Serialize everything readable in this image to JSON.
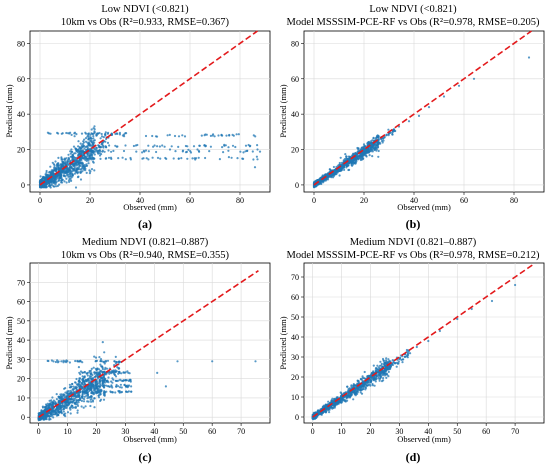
{
  "chart_data": [
    {
      "type": "scatter",
      "panel_label": "(a)",
      "title": [
        "Low NDVI (<0.821)",
        "10km vs Obs (R²=0.933, RMSE=0.367)"
      ],
      "xlabel": "Observed (mm)",
      "ylabel": "Predicted (mm)",
      "xlim": [
        -4,
        92
      ],
      "ylim": [
        -4,
        87
      ],
      "xticks": [
        0,
        20,
        40,
        60,
        80
      ],
      "yticks": [
        0,
        20,
        40,
        60,
        80
      ],
      "grid": true,
      "ref_line": {
        "name": "1:1",
        "x": [
          0,
          87
        ],
        "y": [
          0,
          87
        ],
        "color": "#e31a1c"
      },
      "scatter_color": "#1f77b4",
      "profile": {
        "xmax": 22,
        "slope": 0.92,
        "scatter": 4.5,
        "tail_y": [
          15,
          19,
          22,
          28
        ],
        "tail_xmax": 88,
        "cap_y": 29,
        "cap_xmax": 35
      },
      "outliers": [
        [
          86,
          10
        ],
        [
          87,
          20
        ],
        [
          52,
          20
        ],
        [
          63,
          20
        ]
      ]
    },
    {
      "type": "scatter",
      "panel_label": "(b)",
      "title": [
        "Low NDVI (<0.821)",
        "Model MSSSIM-PCE-RF vs Obs (R²=0.978, RMSE=0.205)"
      ],
      "xlabel": "Observed (mm)",
      "ylabel": "Predicted (mm)",
      "xlim": [
        -4,
        92
      ],
      "ylim": [
        -4,
        87
      ],
      "xticks": [
        0,
        20,
        40,
        60,
        80
      ],
      "yticks": [
        0,
        20,
        40,
        60,
        80
      ],
      "grid": true,
      "ref_line": {
        "name": "1:1",
        "x": [
          0,
          87
        ],
        "y": [
          0,
          87
        ],
        "color": "#e31a1c"
      },
      "scatter_color": "#1f77b4",
      "profile": {
        "xmax": 26,
        "slope": 0.95,
        "scatter": 1.8,
        "tail_y": [],
        "tail_xmax": 0,
        "cap_y": 0,
        "cap_xmax": 0
      },
      "outliers": [
        [
          30,
          29
        ],
        [
          34,
          33
        ],
        [
          38,
          36
        ],
        [
          42,
          39
        ],
        [
          46,
          44
        ],
        [
          52,
          50
        ],
        [
          58,
          56
        ],
        [
          64,
          60
        ],
        [
          86,
          72
        ]
      ]
    },
    {
      "type": "scatter",
      "panel_label": "(c)",
      "title": [
        "Medium NDVI (0.821–0.887)",
        "10km vs Obs (R²=0.940, RMSE=0.355)"
      ],
      "xlabel": "Observed (mm)",
      "ylabel": "Predicted (mm)",
      "xlim": [
        -3,
        80
      ],
      "ylim": [
        -3,
        80
      ],
      "xticks": [
        0,
        10,
        20,
        30,
        40,
        50,
        60,
        70
      ],
      "yticks": [
        0,
        10,
        20,
        30,
        40,
        50,
        60,
        70
      ],
      "grid": true,
      "ref_line": {
        "name": "1:1",
        "x": [
          0,
          76
        ],
        "y": [
          0,
          76
        ],
        "color": "#e31a1c"
      },
      "scatter_color": "#1f77b4",
      "profile": {
        "xmax": 23,
        "slope": 0.92,
        "scatter": 4.0,
        "tail_y": [
          13,
          16,
          19,
          23
        ],
        "tail_xmax": 32,
        "cap_y": 29,
        "cap_xmax": 30
      },
      "outliers": [
        [
          48,
          29
        ],
        [
          60,
          29
        ],
        [
          75,
          29
        ],
        [
          44,
          16
        ],
        [
          41,
          23
        ]
      ]
    },
    {
      "type": "scatter",
      "panel_label": "(d)",
      "title": [
        "Medium NDVI (0.821–0.887)",
        "Model MSSSIM-PCE-RF vs Obs (R²=0.978, RMSE=0.212)"
      ],
      "xlabel": "Observed (mm)",
      "ylabel": "Predicted (mm)",
      "xlim": [
        -3,
        80
      ],
      "ylim": [
        -3,
        77
      ],
      "xticks": [
        0,
        10,
        20,
        30,
        40,
        50,
        60,
        70
      ],
      "yticks": [
        0,
        10,
        20,
        30,
        40,
        50,
        60,
        70
      ],
      "grid": true,
      "ref_line": {
        "name": "1:1",
        "x": [
          0,
          76
        ],
        "y": [
          0,
          76
        ],
        "color": "#e31a1c"
      },
      "scatter_color": "#1f77b4",
      "profile": {
        "xmax": 27,
        "slope": 0.95,
        "scatter": 1.8,
        "tail_y": [],
        "tail_xmax": 0,
        "cap_y": 0,
        "cap_xmax": 0
      },
      "outliers": [
        [
          30,
          29
        ],
        [
          33,
          31
        ],
        [
          36,
          35
        ],
        [
          40,
          38
        ],
        [
          44,
          43
        ],
        [
          50,
          49
        ],
        [
          55,
          54
        ],
        [
          62,
          58
        ],
        [
          70,
          66
        ]
      ]
    }
  ]
}
